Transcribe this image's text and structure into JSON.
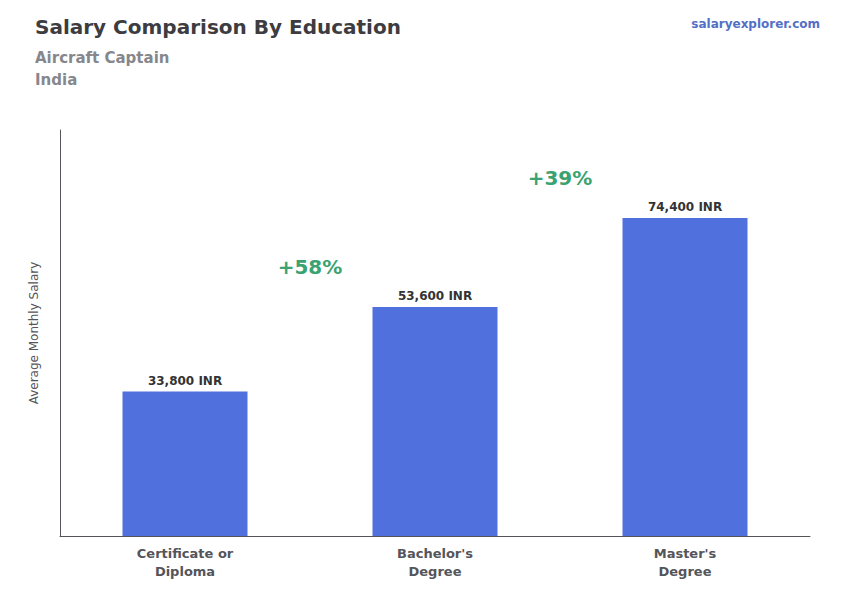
{
  "chart_data": {
    "type": "bar",
    "title": "Salary Comparison By Education",
    "subtitle": "Aircraft Captain\nIndia",
    "categories": [
      "Certificate or\nDiploma",
      "Bachelor's\nDegree",
      "Master's\nDegree"
    ],
    "values": [
      33800,
      53600,
      74400
    ],
    "value_labels": [
      "33,800 INR",
      "53,600 INR",
      "74,400 INR"
    ],
    "data_labels": true,
    "ylabel": "Average Monthly Salary",
    "ylim": [
      0,
      95000
    ],
    "tick_labels": "x",
    "grid": false,
    "annotations": [
      "+58%",
      "+39%",
      "salaryexplorer.com"
    ]
  }
}
